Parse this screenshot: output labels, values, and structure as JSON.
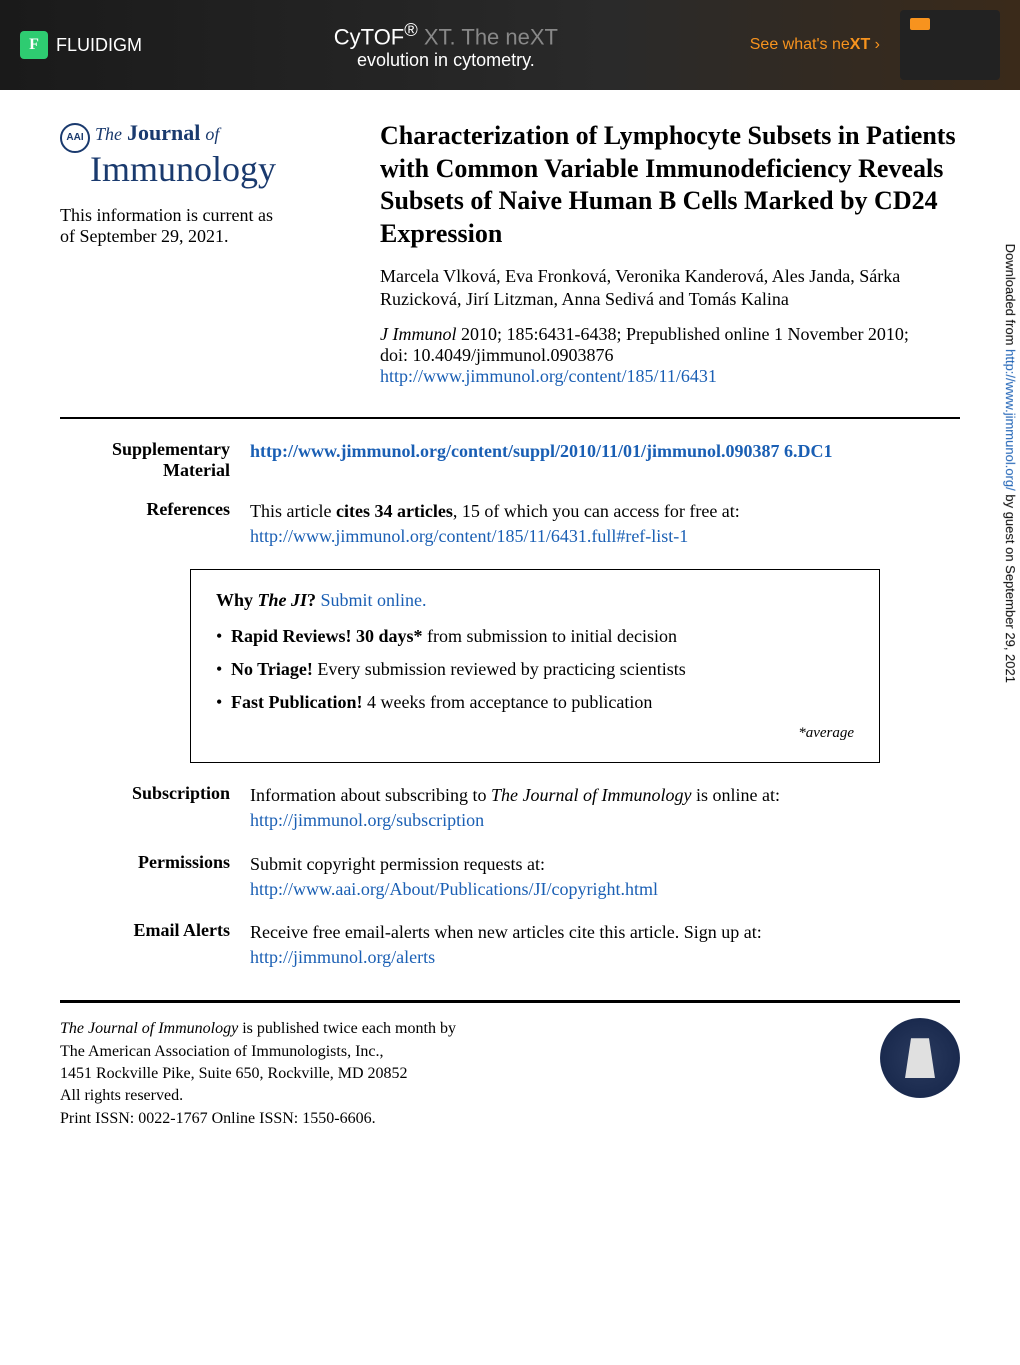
{
  "banner": {
    "brand": "FLUIDIGM",
    "title_pre": "CyTOF",
    "title_sup": "®",
    "title_xt": " XT. The neXT",
    "subtitle": "evolution in cytometry.",
    "cta": "See what's ne",
    "cta_xt": "XT",
    "cta_arrow": "›"
  },
  "journal": {
    "the": "The",
    "name": "Journal",
    "of": "of",
    "immunology": "Immunology",
    "seal_text": "AAI"
  },
  "currency": {
    "line1": "This information is current as",
    "line2": "of September 29, 2021."
  },
  "article": {
    "title": "Characterization of Lymphocyte Subsets in Patients with Common Variable Immunodeficiency Reveals Subsets of Naive Human B Cells Marked by CD24 Expression",
    "authors": "Marcela Vlková, Eva Fronková, Veronika Kanderová, Ales Janda, Sárka Ruzicková, Jirí Litzman, Anna Sedivá and Tomás Kalina",
    "citation_journal": "J Immunol",
    "citation_rest": " 2010; 185:6431-6438; Prepublished online 1 November 2010;",
    "doi": "doi: 10.4049/jimmunol.0903876",
    "url": "http://www.jimmunol.org/content/185/11/6431"
  },
  "meta": {
    "supplementary": {
      "label": "Supplementary Material",
      "url": "http://www.jimmunol.org/content/suppl/2010/11/01/jimmunol.090387 6.DC1"
    },
    "references": {
      "label": "References",
      "text_pre": "This article ",
      "text_bold": "cites 34 articles",
      "text_post": ", 15 of which you can access for free at:",
      "url": "http://www.jimmunol.org/content/185/11/6431.full#ref-list-1"
    },
    "subscription": {
      "label": "Subscription",
      "text": "Information about subscribing to ",
      "journal": "The Journal of Immunology",
      "text2": " is online at:",
      "url": "http://jimmunol.org/subscription"
    },
    "permissions": {
      "label": "Permissions",
      "text": "Submit copyright permission requests at:",
      "url": "http://www.aai.org/About/Publications/JI/copyright.html"
    },
    "alerts": {
      "label": "Email Alerts",
      "text": "Receive free email-alerts when new articles cite this article. Sign up at:",
      "url": "http://jimmunol.org/alerts"
    }
  },
  "why_box": {
    "prefix": "Why ",
    "journal": "The JI",
    "suffix": "? ",
    "submit": "Submit online.",
    "items": [
      {
        "bold": "Rapid Reviews! 30 days*",
        "rest": " from submission to initial decision"
      },
      {
        "bold": "No Triage!",
        "rest": " Every submission reviewed by practicing scientists"
      },
      {
        "bold": "Fast Publication!",
        "rest": " 4 weeks from acceptance to publication"
      }
    ],
    "avg": "*average"
  },
  "footer": {
    "line1_i": "The Journal of Immunology",
    "line1_rest": " is published twice each month by",
    "line2": "The American Association of Immunologists, Inc.,",
    "line3": "1451 Rockville Pike, Suite 650, Rockville, MD 20852",
    "line4": "All rights reserved.",
    "line5": "Print ISSN: 0022-1767 Online ISSN: 1550-6606."
  },
  "sidebar": {
    "pre": "Downloaded from ",
    "url": "http://www.jimmunol.org/",
    "post": " by guest on September 29, 2021"
  }
}
